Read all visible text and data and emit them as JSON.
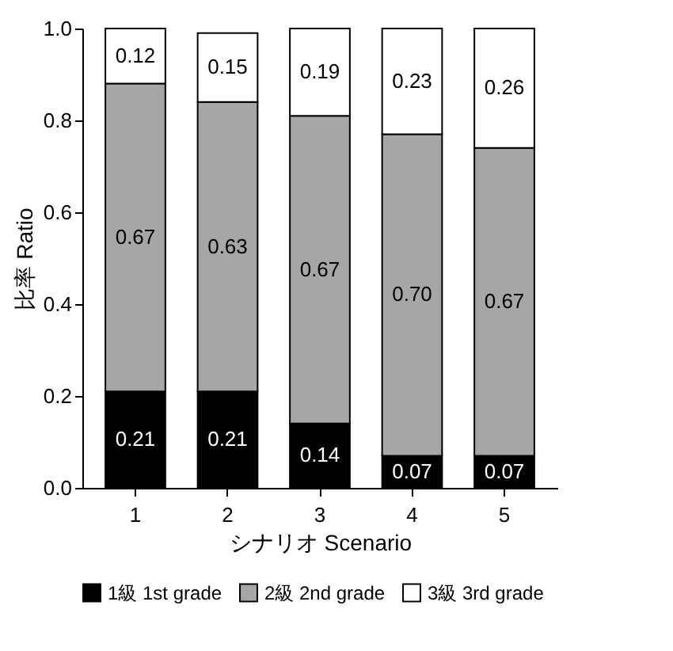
{
  "chart_data": {
    "type": "bar",
    "stacked": true,
    "xlabel": "シナリオ Scenario",
    "ylabel": "比率 Ratio",
    "categories": [
      "1",
      "2",
      "3",
      "4",
      "5"
    ],
    "series": [
      {
        "name": "1級 1st grade",
        "color": "#000000",
        "values": [
          0.21,
          0.21,
          0.14,
          0.07,
          0.07
        ],
        "value_labels": [
          "0.21",
          "0.21",
          "0.14",
          "0.07",
          "0.07"
        ]
      },
      {
        "name": "2級 2nd grade",
        "color": "#a6a6a6",
        "values": [
          0.67,
          0.63,
          0.67,
          0.7,
          0.67
        ],
        "value_labels": [
          "0.67",
          "0.63",
          "0.67",
          "0.70",
          "0.67"
        ]
      },
      {
        "name": "3級 3rd grade",
        "color": "#ffffff",
        "values": [
          0.12,
          0.15,
          0.19,
          0.23,
          0.26
        ],
        "value_labels": [
          "0.12",
          "0.15",
          "0.19",
          "0.23",
          "0.26"
        ]
      }
    ],
    "ylim": [
      0,
      1
    ],
    "yticks": [
      {
        "value": 0,
        "label": "0.0"
      },
      {
        "value": 0.2,
        "label": "0.2"
      },
      {
        "value": 0.4,
        "label": "0.4"
      },
      {
        "value": 0.6,
        "label": "0.6"
      },
      {
        "value": 0.8,
        "label": "0.8"
      },
      {
        "value": 1,
        "label": "1.0"
      }
    ],
    "legend": "bottom",
    "grid": false
  }
}
